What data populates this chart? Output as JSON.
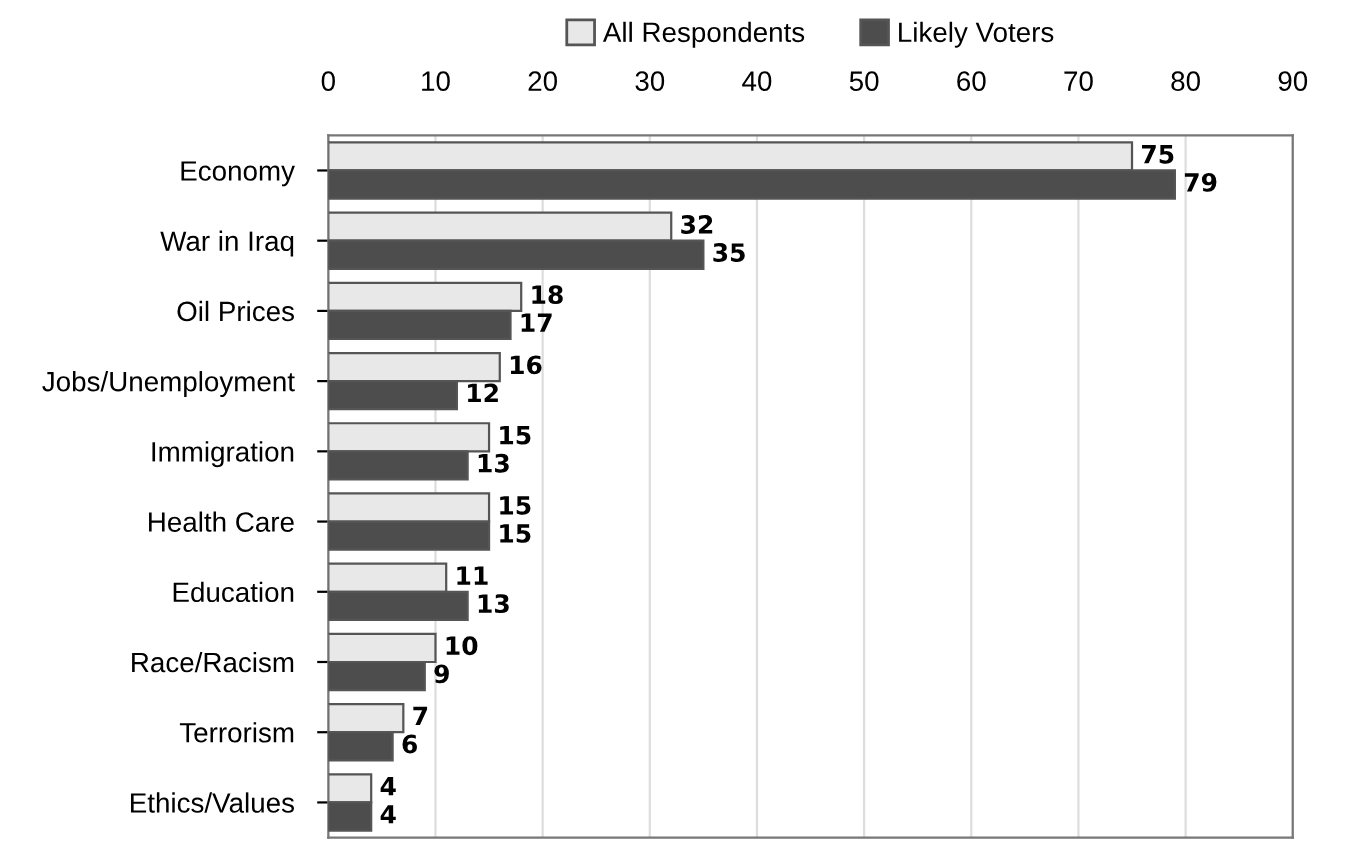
{
  "chart_data": {
    "type": "bar",
    "orientation": "horizontal",
    "categories": [
      "Economy",
      "War in Iraq",
      "Oil Prices",
      "Jobs/Unemployment",
      "Immigration",
      "Health Care",
      "Education",
      "Race/Racism",
      "Terrorism",
      "Ethics/Values"
    ],
    "series": [
      {
        "name": "All Respondents",
        "color": "#e8e8e8",
        "values": [
          75,
          32,
          18,
          16,
          15,
          15,
          11,
          10,
          7,
          4
        ]
      },
      {
        "name": "Likely Voters",
        "color": "#4d4d4d",
        "values": [
          79,
          35,
          17,
          12,
          13,
          15,
          13,
          9,
          6,
          4
        ]
      }
    ],
    "xlim": [
      0,
      90
    ],
    "xticks": [
      0,
      10,
      20,
      30,
      40,
      50,
      60,
      70,
      80,
      90
    ],
    "grid": "x",
    "legend": "top",
    "data_labels": true
  }
}
